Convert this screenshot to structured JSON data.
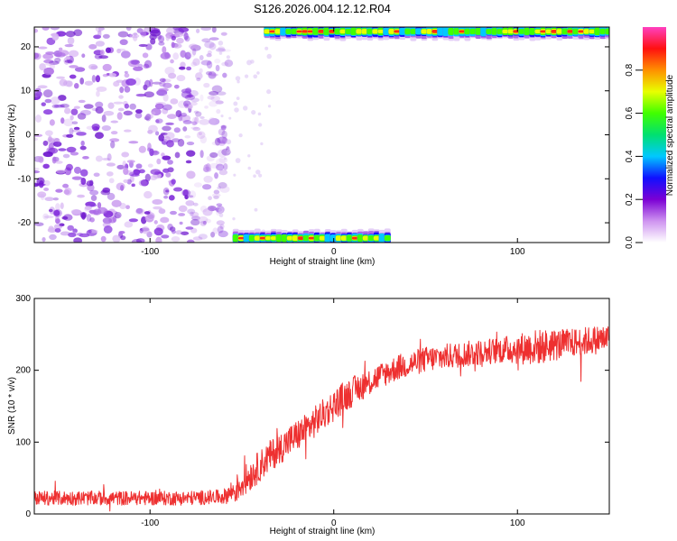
{
  "title": "S126.2026.004.12.12.R04",
  "chart_data": [
    {
      "type": "heatmap",
      "title": "S126.2026.004.12.12.R04",
      "xlabel": "Height of straight line (km)",
      "ylabel": "Frequency (Hz)",
      "xlim": [
        -163,
        150
      ],
      "ylim": [
        -24.5,
        24.5
      ],
      "xticks": [
        -100,
        0,
        100
      ],
      "xtick_labels": [
        "-100",
        "0",
        "100"
      ],
      "yticks": [
        -20,
        -10,
        0,
        10,
        20
      ],
      "ytick_labels": [
        "-20",
        "-10",
        "0",
        "10",
        "20"
      ],
      "noise_region_x": [
        -163,
        -63
      ],
      "spectral_bands": [
        {
          "freq_hz": 23.5,
          "x_start": -38,
          "x_end": 150,
          "peak_amplitude": 0.95
        },
        {
          "freq_hz": -23.5,
          "x_start": -55,
          "x_end": 30,
          "peak_amplitude": 0.95
        }
      ],
      "colorbar": {
        "label": "Normalized spectral amplitude",
        "range": [
          0.0,
          1.0
        ],
        "ticks": [
          0.0,
          0.2,
          0.4,
          0.6,
          0.8
        ],
        "tick_labels": [
          "0.0",
          "0.2",
          "0.4",
          "0.6",
          "0.8"
        ],
        "colors": [
          "#ffffff",
          "#ce93f0",
          "#7b00d4",
          "#1010ff",
          "#00c8ff",
          "#00e070",
          "#40ff00",
          "#e8ff00",
          "#ff9000",
          "#ff1010",
          "#ff40c0"
        ]
      }
    },
    {
      "type": "line",
      "xlabel": "Height of straight line (km)",
      "ylabel": "SNR (10 * v/v)",
      "xlim": [
        -163,
        150
      ],
      "ylim": [
        0,
        300
      ],
      "xticks": [
        -100,
        0,
        100
      ],
      "xtick_labels": [
        "-100",
        "0",
        "100"
      ],
      "yticks": [
        0,
        100,
        200,
        300
      ],
      "ytick_labels": [
        "0",
        "100",
        "200",
        "300"
      ],
      "color": "#ee3030",
      "series": [
        {
          "name": "SNR",
          "x": [
            -163,
            -140,
            -120,
            -100,
            -80,
            -60,
            -53,
            -45,
            -35,
            -25,
            -15,
            -5,
            5,
            15,
            25,
            35,
            50,
            70,
            90,
            110,
            130,
            150
          ],
          "values": [
            22,
            22,
            22,
            22,
            22,
            24,
            35,
            55,
            80,
            100,
            118,
            140,
            162,
            178,
            192,
            204,
            215,
            222,
            228,
            232,
            238,
            245
          ],
          "noise_amplitude": [
            10,
            10,
            10,
            10,
            10,
            10,
            20,
            22,
            22,
            22,
            22,
            22,
            22,
            20,
            18,
            18,
            18,
            18,
            18,
            25,
            20,
            20
          ]
        }
      ]
    }
  ]
}
